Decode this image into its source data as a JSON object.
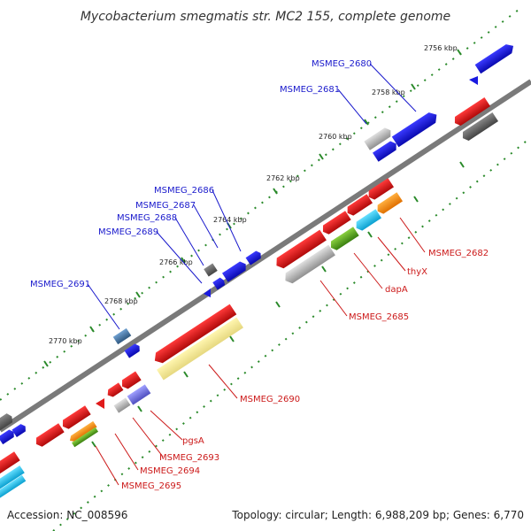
{
  "title": "Mycobacterium smegmatis str. MC2 155, complete genome",
  "footer": {
    "accession": "Accession: NC_008596",
    "summary": "Topology: circular; Length: 6,988,209 bp; Genes: 6,770"
  },
  "colors": {
    "forward_label": "#1a1acc",
    "reverse_label": "#cc1a1a",
    "blue_gene": "#1a1ae0",
    "red_gene": "#e01a1a",
    "backbone": "#808080",
    "tick_dot": "#2a8a2a"
  },
  "kbp_ticks": [
    "2756 kbp",
    "2758 kbp",
    "2760 kbp",
    "2762 kbp",
    "2764 kbp",
    "2766 kbp",
    "2768 kbp",
    "2770 kbp"
  ],
  "forward_labels": [
    "MSMEG_2680",
    "MSMEG_2681",
    "MSMEG_2686",
    "MSMEG_2687",
    "MSMEG_2688",
    "MSMEG_2689",
    "MSMEG_2691"
  ],
  "reverse_labels": [
    "MSMEG_2682",
    "thyX",
    "dapA",
    "MSMEG_2685",
    "MSMEG_2690",
    "pgsA",
    "MSMEG_2693",
    "MSMEG_2694",
    "MSMEG_2695"
  ]
}
